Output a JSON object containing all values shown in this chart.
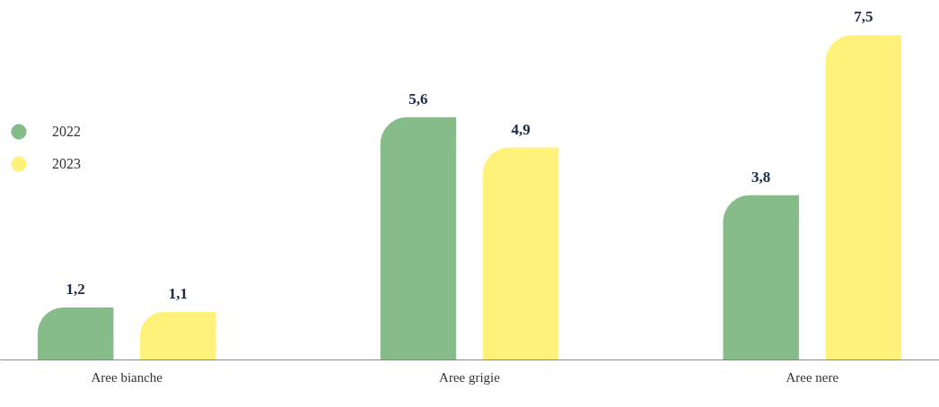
{
  "chart_data": {
    "type": "bar",
    "categories": [
      "Aree bianche",
      "Aree grigie",
      "Aree nere"
    ],
    "series": [
      {
        "name": "2022",
        "color": "#86bb8a",
        "values": [
          1.2,
          5.6,
          3.8
        ],
        "value_labels": [
          "1,2",
          "5,6",
          "3,8"
        ]
      },
      {
        "name": "2023",
        "color": "#fff27a",
        "values": [
          1.1,
          4.9,
          7.5
        ],
        "value_labels": [
          "1,1",
          "4,9",
          "7,5"
        ]
      }
    ],
    "tick_labels": "x",
    "legend": "top left"
  }
}
